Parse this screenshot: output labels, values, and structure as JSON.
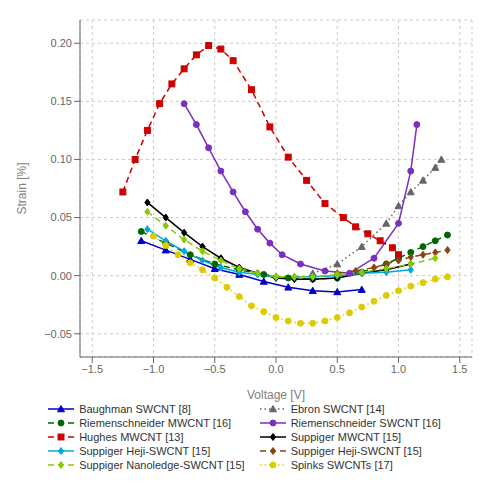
{
  "chart_data": {
    "type": "line",
    "xlabel": "Voltage [V]",
    "ylabel": "Strain [%]",
    "xlim": [
      -1.6,
      1.6
    ],
    "ylim": [
      -0.07,
      0.22
    ],
    "xticks": [
      {
        "value": -1.5,
        "label": "−1.5"
      },
      {
        "value": -1.0,
        "label": "−1.0"
      },
      {
        "value": -0.5,
        "label": "−0.5"
      },
      {
        "value": 0.0,
        "label": "0.0"
      },
      0.5,
      {
        "value": 1.0,
        "label": "1.0"
      },
      1.5
    ],
    "yticks": [
      {
        "value": -0.05,
        "label": "−0.05"
      },
      {
        "value": 0.0,
        "label": "0.00"
      },
      0.05,
      {
        "value": 0.1,
        "label": "0.10"
      },
      {
        "value": 0.15,
        "label": "0.15"
      },
      {
        "value": 0.2,
        "label": "0.20"
      }
    ],
    "grid": true,
    "legend": "bottom",
    "series": [
      {
        "name": "Baughman SWCNT [8]",
        "color": "#0000CC",
        "line_style": "solid",
        "marker": "triangle",
        "x": [
          -1.1,
          -0.9,
          -0.7,
          -0.5,
          -0.3,
          -0.1,
          0.1,
          0.3,
          0.5,
          0.7
        ],
        "values": [
          0.03,
          0.022,
          0.014,
          0.006,
          0.001,
          -0.005,
          -0.01,
          -0.013,
          -0.014,
          -0.012
        ]
      },
      {
        "name": "Ebron SWCNT [14]",
        "color": "#666666",
        "line_style": "dotted",
        "marker": "triangle",
        "x": [
          0.3,
          0.5,
          0.7,
          0.9,
          1.0,
          1.1,
          1.2,
          1.3,
          1.35
        ],
        "values": [
          0.002,
          0.01,
          0.025,
          0.045,
          0.06,
          0.072,
          0.082,
          0.093,
          0.1
        ]
      },
      {
        "name": "Riemenschneider MWCNT [16]",
        "color": "#006600",
        "line_style": "dashed",
        "marker": "circle",
        "x": [
          -1.1,
          -0.9,
          -0.7,
          -0.5,
          -0.3,
          -0.1,
          0.1,
          0.3,
          0.5,
          0.7,
          0.9,
          1.0,
          1.1,
          1.2,
          1.3,
          1.4
        ],
        "values": [
          0.038,
          0.028,
          0.018,
          0.01,
          0.005,
          0.001,
          -0.002,
          -0.003,
          -0.002,
          0.003,
          0.01,
          0.015,
          0.02,
          0.025,
          0.03,
          0.035
        ]
      },
      {
        "name": "Riemenschneider SWCNT [16]",
        "color": "#7B2FBE",
        "line_style": "solid",
        "marker": "circle",
        "x": [
          -0.75,
          -0.65,
          -0.55,
          -0.45,
          -0.35,
          -0.25,
          -0.15,
          -0.05,
          0.05,
          0.2,
          0.4,
          0.6,
          0.8,
          1.0,
          1.1,
          1.15
        ],
        "values": [
          0.148,
          0.13,
          0.11,
          0.09,
          0.072,
          0.055,
          0.04,
          0.028,
          0.018,
          0.01,
          0.004,
          0.002,
          0.015,
          0.045,
          0.09,
          0.13
        ]
      },
      {
        "name": "Hughes MWCNT [13]",
        "color": "#CC0000",
        "line_style": "dashed",
        "marker": "square",
        "x": [
          -1.25,
          -1.15,
          -1.05,
          -0.95,
          -0.85,
          -0.75,
          -0.65,
          -0.55,
          -0.45,
          -0.35,
          -0.2,
          -0.05,
          0.1,
          0.25,
          0.4,
          0.55,
          0.65,
          0.75,
          0.85,
          0.95,
          1.0
        ],
        "values": [
          0.072,
          0.1,
          0.125,
          0.148,
          0.165,
          0.178,
          0.19,
          0.198,
          0.195,
          0.185,
          0.16,
          0.128,
          0.102,
          0.082,
          0.062,
          0.05,
          0.042,
          0.036,
          0.03,
          0.024,
          0.018
        ]
      },
      {
        "name": "Suppiger MWCNT [15]",
        "color": "#000000",
        "line_style": "solid",
        "marker": "diamond",
        "x": [
          -1.05,
          -0.9,
          -0.75,
          -0.6,
          -0.45,
          -0.3,
          -0.15,
          0.0,
          0.15,
          0.3,
          0.5,
          0.7,
          0.9,
          1.1
        ],
        "values": [
          0.063,
          0.05,
          0.037,
          0.025,
          0.015,
          0.007,
          0.002,
          -0.002,
          -0.003,
          -0.003,
          -0.002,
          0.002,
          0.005,
          0.01
        ]
      },
      {
        "name": "Suppiger Heji-SWCNT [15]",
        "color": "#00AADD",
        "line_style": "solid",
        "marker": "diamond",
        "x": [
          -1.05,
          -0.9,
          -0.75,
          -0.6,
          -0.45,
          -0.3,
          -0.15,
          0.0,
          0.15,
          0.3,
          0.5,
          0.7,
          0.9,
          1.1
        ],
        "values": [
          0.04,
          0.03,
          0.021,
          0.013,
          0.007,
          0.003,
          0.001,
          -0.001,
          -0.001,
          -0.001,
          0.0,
          0.002,
          0.003,
          0.005
        ]
      },
      {
        "name": "Suppiger Heji-SWCNT [15]",
        "color": "#8B4513",
        "line_style": "dashed",
        "marker": "diamond",
        "x": [
          0.5,
          0.65,
          0.8,
          0.9,
          1.0,
          1.1,
          1.2,
          1.3,
          1.4
        ],
        "values": [
          0.002,
          0.004,
          0.007,
          0.01,
          0.013,
          0.016,
          0.018,
          0.02,
          0.022
        ]
      },
      {
        "name": "Suppiger Nanoledge-SWCNT [15]",
        "color": "#88CC00",
        "line_style": "dashed",
        "marker": "diamond",
        "x": [
          -1.05,
          -0.9,
          -0.75,
          -0.6,
          -0.45,
          -0.3,
          -0.15,
          0.0,
          0.15,
          0.3,
          0.5,
          0.7,
          0.9,
          1.1,
          1.3
        ],
        "values": [
          0.055,
          0.043,
          0.031,
          0.021,
          0.013,
          0.006,
          0.002,
          -0.001,
          -0.001,
          -0.001,
          0.001,
          0.003,
          0.006,
          0.01,
          0.015
        ]
      },
      {
        "name": "Spinks SWCNTs [17]",
        "color": "#DDCC00",
        "line_style": "dotted",
        "marker": "circle",
        "x": [
          -1.0,
          -0.9,
          -0.8,
          -0.7,
          -0.6,
          -0.5,
          -0.4,
          -0.3,
          -0.2,
          -0.1,
          0.0,
          0.1,
          0.2,
          0.3,
          0.4,
          0.5,
          0.6,
          0.7,
          0.8,
          0.9,
          1.0,
          1.1,
          1.2,
          1.3,
          1.4
        ],
        "values": [
          0.034,
          0.026,
          0.018,
          0.011,
          0.005,
          -0.002,
          -0.01,
          -0.018,
          -0.026,
          -0.031,
          -0.036,
          -0.039,
          -0.041,
          -0.041,
          -0.039,
          -0.036,
          -0.032,
          -0.027,
          -0.022,
          -0.017,
          -0.013,
          -0.009,
          -0.006,
          -0.003,
          -0.001
        ]
      }
    ]
  }
}
